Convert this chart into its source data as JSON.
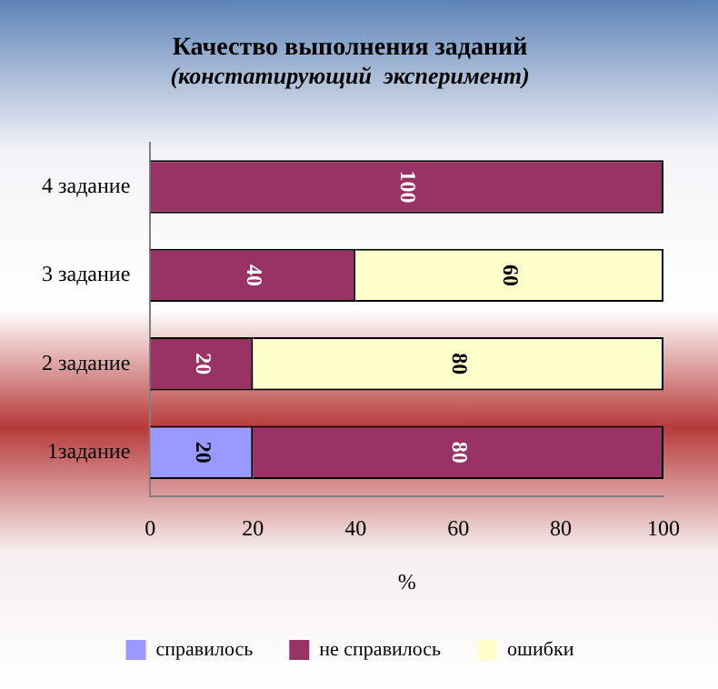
{
  "chart_data": {
    "type": "bar",
    "orientation": "horizontal",
    "stacked": true,
    "title": "Качество выполнения заданий",
    "subtitle": "(констатирующий  эксперимент)",
    "xlabel": "%",
    "categories": [
      "4 задание",
      "3 задание",
      "2 задание",
      "1задание"
    ],
    "series": [
      {
        "name": "справилось",
        "color": "#9999ff",
        "values": [
          null,
          null,
          null,
          20
        ]
      },
      {
        "name": "не справилось",
        "color": "#993366",
        "values": [
          100,
          40,
          20,
          80
        ]
      },
      {
        "name": "ошибки",
        "color": "#ffffcc",
        "values": [
          null,
          60,
          80,
          null
        ]
      }
    ],
    "xlim": [
      0,
      100
    ],
    "xticks": [
      0,
      20,
      40,
      60,
      80,
      100
    ],
    "grid": false,
    "legend": "bottom",
    "data_labels": true
  }
}
